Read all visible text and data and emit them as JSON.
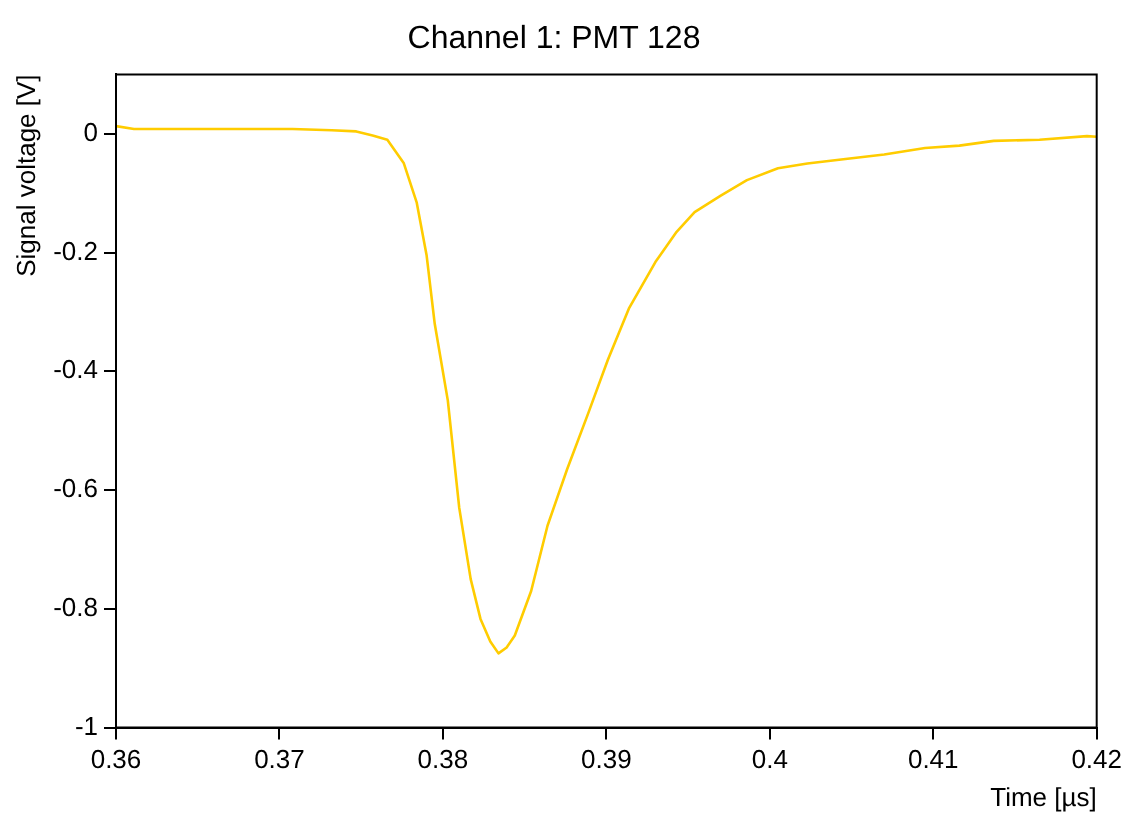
{
  "chart_data": {
    "type": "line",
    "title": "Channel 1: PMT 128",
    "xlabel": "Time [µs]",
    "ylabel": "Signal voltage [V]",
    "xlim": [
      0.36,
      0.42
    ],
    "xticks": [
      0.36,
      0.37,
      0.38,
      0.39,
      0.4,
      0.41,
      0.42
    ],
    "ylim": [
      -1,
      0.1
    ],
    "yticks": [
      -1,
      -0.8,
      -0.6,
      -0.4,
      -0.2,
      0
    ],
    "grid": false,
    "legend": false,
    "marker": "none",
    "line_style": "solid",
    "series": [
      {
        "color": "#ffcc00",
        "x": [
          0.36,
          0.3611,
          0.3708,
          0.3732,
          0.3747,
          0.3757,
          0.3766,
          0.3776,
          0.3784,
          0.379,
          0.3795,
          0.3803,
          0.381,
          0.3817,
          0.3823,
          0.3829,
          0.3834,
          0.3839,
          0.3844,
          0.3854,
          0.3864,
          0.3876,
          0.3889,
          0.3901,
          0.3914,
          0.393,
          0.3943,
          0.3954,
          0.397,
          0.3986,
          0.4005,
          0.4023,
          0.4045,
          0.407,
          0.4095,
          0.4116,
          0.4137,
          0.4165,
          0.4194,
          0.42
        ],
        "values": [
          0.013,
          0.008,
          0.008,
          0.006,
          0.004,
          -0.003,
          -0.01,
          -0.049,
          -0.116,
          -0.204,
          -0.32,
          -0.449,
          -0.63,
          -0.75,
          -0.817,
          -0.855,
          -0.875,
          -0.865,
          -0.845,
          -0.77,
          -0.66,
          -0.565,
          -0.47,
          -0.38,
          -0.293,
          -0.216,
          -0.165,
          -0.132,
          -0.104,
          -0.078,
          -0.058,
          -0.05,
          -0.043,
          -0.035,
          -0.024,
          -0.02,
          -0.012,
          -0.01,
          -0.004,
          -0.005
        ]
      }
    ]
  }
}
